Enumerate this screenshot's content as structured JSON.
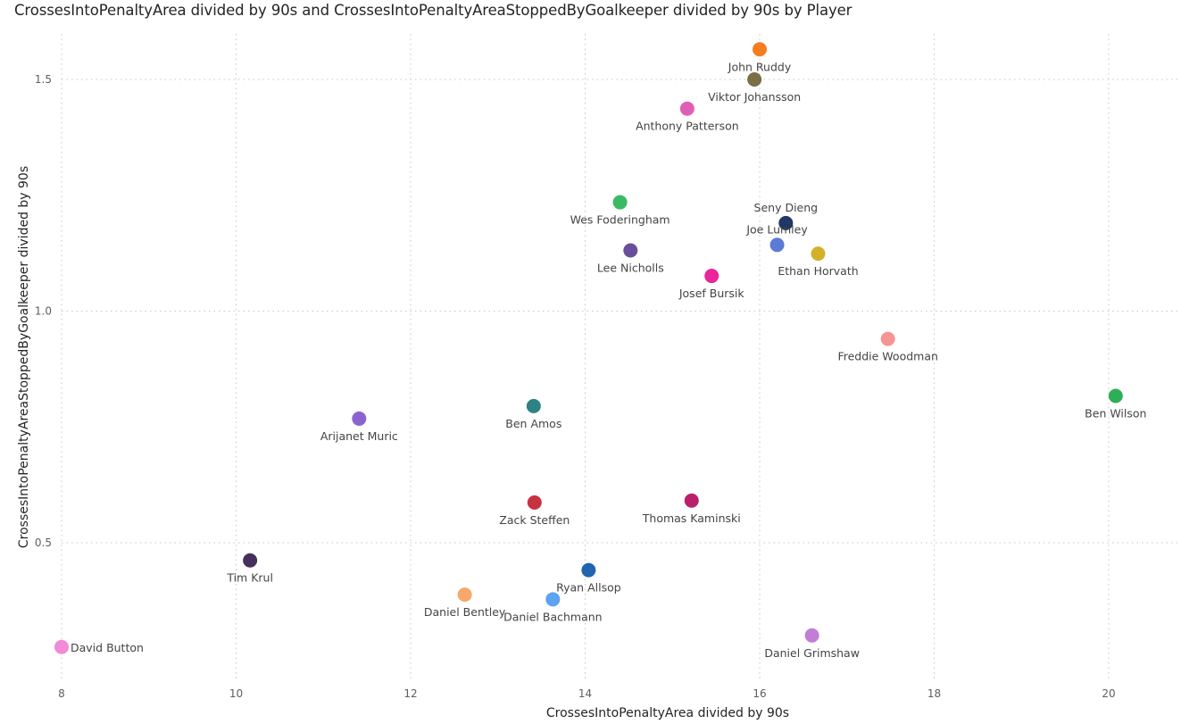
{
  "chart_data": {
    "type": "scatter",
    "title": "CrossesIntoPenaltyArea divided by 90s and CrossesIntoPenaltyAreaStoppedByGoalkeeper divided by 90s by Player",
    "xlabel": "CrossesIntoPenaltyArea divided by 90s",
    "ylabel": "CrossesIntoPenaltyAreaStoppedByGoalkeeper divided by 90s",
    "xlim": [
      8,
      21
    ],
    "ylim": [
      0.27,
      1.58
    ],
    "x_ticks": [
      8,
      10,
      12,
      14,
      16,
      18,
      20
    ],
    "y_ticks": [
      0.5,
      1.0,
      1.5
    ],
    "x_tick_labels": [
      "8",
      "10",
      "12",
      "14",
      "16",
      "18",
      "20"
    ],
    "y_tick_labels": [
      "0.5",
      "1.0",
      "1.5"
    ],
    "grid": true,
    "points": [
      {
        "label": "John Ruddy",
        "x": 16.0,
        "y": 1.565,
        "color": "#F57C1F",
        "label_pos": "below"
      },
      {
        "label": "Viktor Johansson",
        "x": 15.94,
        "y": 1.5,
        "color": "#7A6F45",
        "label_pos": "below"
      },
      {
        "label": "Anthony Patterson",
        "x": 15.17,
        "y": 1.437,
        "color": "#E05FB6",
        "label_pos": "below"
      },
      {
        "label": "Wes Foderingham",
        "x": 14.4,
        "y": 1.235,
        "color": "#3BBA64",
        "label_pos": "below"
      },
      {
        "label": "Seny Dieng",
        "x": 16.3,
        "y": 1.19,
        "color": "#1F3864",
        "label_pos": "above"
      },
      {
        "label": "Joe Lumley",
        "x": 16.2,
        "y": 1.143,
        "color": "#5B7BD5",
        "label_pos": "above"
      },
      {
        "label": "Lee Nicholls",
        "x": 14.52,
        "y": 1.131,
        "color": "#6B4E9B",
        "label_pos": "below"
      },
      {
        "label": "Ethan Horvath",
        "x": 16.67,
        "y": 1.124,
        "color": "#D4B02A",
        "label_pos": "below"
      },
      {
        "label": "Josef Bursik",
        "x": 15.45,
        "y": 1.076,
        "color": "#E8259A",
        "label_pos": "below"
      },
      {
        "label": "Freddie Woodman",
        "x": 17.47,
        "y": 0.94,
        "color": "#F59595",
        "label_pos": "below"
      },
      {
        "label": "Ben Wilson",
        "x": 20.08,
        "y": 0.817,
        "color": "#2DAF57",
        "label_pos": "below"
      },
      {
        "label": "Ben Amos",
        "x": 13.41,
        "y": 0.795,
        "color": "#2E8285",
        "label_pos": "below"
      },
      {
        "label": "Arijanet Muric",
        "x": 11.41,
        "y": 0.768,
        "color": "#8B63CE",
        "label_pos": "below"
      },
      {
        "label": "Zack Steffen",
        "x": 13.42,
        "y": 0.587,
        "color": "#C8323F",
        "label_pos": "below"
      },
      {
        "label": "Thomas Kaminski",
        "x": 15.22,
        "y": 0.591,
        "color": "#B8206B",
        "label_pos": "below"
      },
      {
        "label": "Tim Krul",
        "x": 10.16,
        "y": 0.462,
        "color": "#46305E",
        "label_pos": "below"
      },
      {
        "label": "Ryan Allsop",
        "x": 14.04,
        "y": 0.441,
        "color": "#1F66AF",
        "label_pos": "below"
      },
      {
        "label": "Daniel Bentley",
        "x": 12.62,
        "y": 0.388,
        "color": "#F7A86A",
        "label_pos": "below"
      },
      {
        "label": "Daniel Bachmann",
        "x": 13.63,
        "y": 0.378,
        "color": "#5EA2F0",
        "label_pos": "below"
      },
      {
        "label": "Daniel Grimshaw",
        "x": 16.6,
        "y": 0.3,
        "color": "#C27ED6",
        "label_pos": "below"
      },
      {
        "label": "David Button",
        "x": 8.0,
        "y": 0.275,
        "color": "#F28AD7",
        "label_pos": "right"
      }
    ]
  }
}
